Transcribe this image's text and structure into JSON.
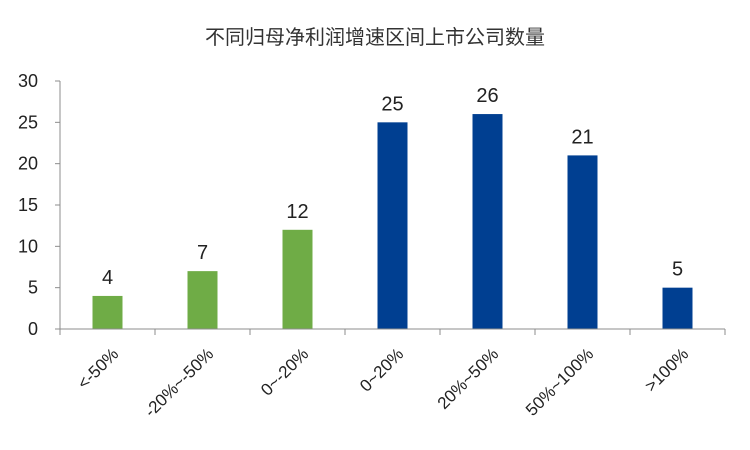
{
  "chart_data": {
    "type": "bar",
    "title": "不同归母净利润增速区间上市公司数量",
    "xlabel": "",
    "ylabel": "",
    "categories": [
      "<-50%",
      "-20%~-50%",
      "0~-20%",
      "0~20%",
      "20%~50%",
      "50%~100%",
      ">100%"
    ],
    "values": [
      4,
      7,
      12,
      25,
      26,
      21,
      5
    ],
    "bar_colors": [
      "#6fac46",
      "#6fac46",
      "#6fac46",
      "#003f91",
      "#003f91",
      "#003f91",
      "#003f91"
    ],
    "ylim": [
      0,
      30
    ],
    "yticks": [
      0,
      5,
      10,
      15,
      20,
      25,
      30
    ],
    "grid": false,
    "legend": "none",
    "data_labels": true
  }
}
